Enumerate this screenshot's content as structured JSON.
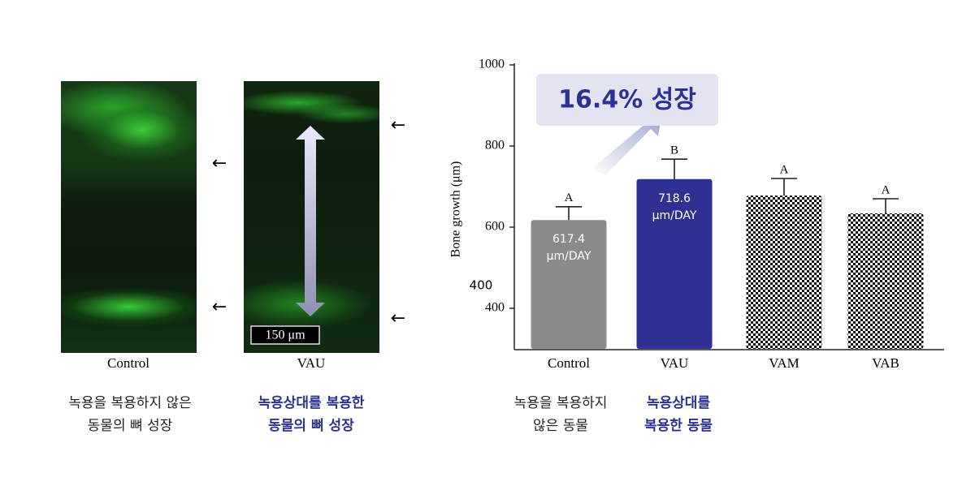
{
  "figure": {
    "images": [
      {
        "label": "Control",
        "caption": "녹용을 복용하지 않은\n동물의 뼈 성장"
      },
      {
        "label": "VAU",
        "caption": "녹용상대를 복용한\n동물의 뼈 성장",
        "scale_bar": "150 μm"
      }
    ],
    "arrow_symbol": "←"
  },
  "chart_data": {
    "type": "bar",
    "callout": "16.4% 성장",
    "y_label": "Bone growth (μm)",
    "categories": [
      "Control",
      "VAU",
      "VAM",
      "VAB"
    ],
    "values": [
      617.4,
      718.6,
      678,
      634
    ],
    "value_labels": [
      "617.4\nμm/DAY",
      "718.6\nμm/DAY",
      null,
      null
    ],
    "errors": [
      33,
      49,
      42,
      36
    ],
    "significance": [
      "A",
      "B",
      "A",
      "A"
    ],
    "fills": [
      "#8a8a8a",
      "#2e3192",
      "checkerboard",
      "checkerboard"
    ],
    "ylim": [
      300,
      1000
    ],
    "yticks": [
      400,
      600,
      800,
      1000
    ],
    "stray_label": "400",
    "group_captions": [
      "녹용을 복용하지\n않은 동물",
      "녹용상대를\n복용한 동물"
    ]
  }
}
